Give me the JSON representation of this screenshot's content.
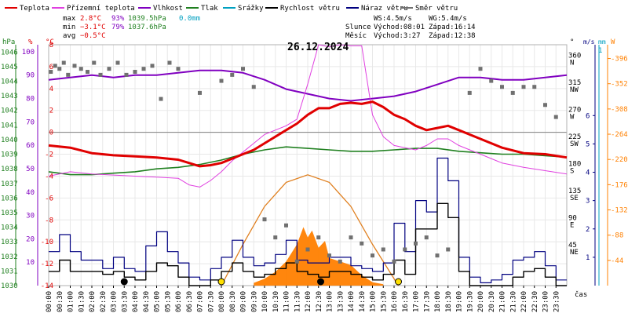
{
  "chart_data": {
    "type": "line",
    "title": "26.12.2024",
    "legend": [
      {
        "label": "Teplota",
        "color": "#e00000"
      },
      {
        "label": "Přízemní teplota",
        "color": "#e040e0"
      },
      {
        "label": "Vlhkost",
        "color": "#8000c0"
      },
      {
        "label": "Tlak",
        "color": "#208020"
      },
      {
        "label": "Srážky",
        "color": "#00a0c0"
      },
      {
        "label": "Rychlost větru",
        "color": "#000000"
      },
      {
        "label": "Náraz větru",
        "color": "#000080"
      },
      {
        "label": "Směr větru",
        "color": "#707070"
      }
    ],
    "stats": {
      "max": {
        "label": "max",
        "temp": "2.8°C",
        "hum": "93%",
        "press": "1039.5hPa",
        "rain": "0.0mm"
      },
      "min": {
        "label": "min",
        "temp": "−3.1°C",
        "hum": "79%",
        "press": "1037.6hPa"
      },
      "avg": {
        "label": "avg",
        "temp": "−0.5°C"
      }
    },
    "ws": "WS:4.5m/s",
    "wg": "WG:5.4m/s",
    "sun": {
      "label": "Slunce",
      "rise": "Východ:08:01",
      "set": "Západ:16:14"
    },
    "moon": {
      "label": "Měsíc",
      "rise": "Východ:3:27",
      "set": "Západ:12:38"
    },
    "x_ticks": [
      "00:00",
      "00:30",
      "01:00",
      "01:30",
      "02:00",
      "02:30",
      "03:00",
      "03:30",
      "04:00",
      "04:30",
      "05:00",
      "05:30",
      "06:00",
      "06:30",
      "07:00",
      "07:30",
      "08:00",
      "08:30",
      "09:00",
      "09:30",
      "10:00",
      "10:30",
      "11:00",
      "11:30",
      "12:00",
      "12:30",
      "13:00",
      "13:30",
      "14:00",
      "14:30",
      "15:00",
      "15:30",
      "16:00",
      "16:30",
      "17:00",
      "17:30",
      "18:00",
      "18:30",
      "19:00",
      "19:30",
      "20:00",
      "20:30",
      "21:00",
      "21:30",
      "22:00",
      "22:30",
      "23:00",
      "23:30"
    ],
    "x_axis_label": "čas",
    "axes": {
      "hpa": {
        "unit": "hPa",
        "ticks": [
          "1046",
          "1045",
          "1044",
          "1043",
          "1042",
          "1041",
          "1040",
          "1039",
          "1038",
          "1037",
          "1036",
          "1035",
          "1034",
          "1033",
          "1032",
          "1031",
          "1030"
        ],
        "range": [
          1030,
          1046.5
        ]
      },
      "pct": {
        "unit": "%",
        "ticks": [
          "100",
          "90",
          "80",
          "70",
          "60",
          "50",
          "40",
          "30",
          "20",
          "10"
        ],
        "range": [
          0,
          103
        ]
      },
      "temp": {
        "unit": "°C",
        "ticks": [
          "8",
          "6",
          "4",
          "2",
          "0",
          "-2",
          "-4",
          "-6",
          "-8",
          "-10",
          "-12",
          "-14"
        ],
        "range": [
          -14,
          8
        ]
      },
      "dir": {
        "unit": "°",
        "labels": [
          {
            "deg": "360",
            "name": "N"
          },
          {
            "deg": "315",
            "name": "NW"
          },
          {
            "deg": "270",
            "name": "W"
          },
          {
            "deg": "225",
            "name": "SW"
          },
          {
            "deg": "180",
            "name": "S"
          },
          {
            "deg": "135",
            "name": "SE"
          },
          {
            "deg": "90",
            "name": "E"
          },
          {
            "deg": "45",
            "name": "NE"
          }
        ],
        "range": [
          0,
          360
        ]
      },
      "wind": {
        "unit": "m/s",
        "ticks": [
          "6",
          "5",
          "4",
          "3",
          "2",
          "1"
        ],
        "range": [
          0,
          6
        ]
      },
      "rain": {
        "unit": "mm",
        "ticks": [
          "1"
        ]
      },
      "solar": {
        "unit": "W",
        "ticks": [
          "396",
          "352",
          "308",
          "264",
          "220",
          "176",
          "132",
          "88",
          "44"
        ],
        "range": [
          0,
          400
        ]
      }
    },
    "series": [
      {
        "name": "Teplota",
        "color": "#e00000",
        "axis": "temp",
        "x": [
          0,
          1,
          2,
          3,
          4,
          5,
          6,
          6.5,
          7,
          7.5,
          8,
          8.5,
          9,
          9.5,
          10,
          10.5,
          11,
          11.5,
          12,
          12.5,
          13,
          13.5,
          14,
          14.5,
          15,
          15.5,
          16,
          16.5,
          17,
          17.5,
          18,
          18.5,
          19,
          20,
          21,
          22,
          23,
          24
        ],
        "y": [
          -1.2,
          -1.4,
          -1.9,
          -2.1,
          -2.2,
          -2.3,
          -2.5,
          -2.8,
          -3.1,
          -3.0,
          -2.8,
          -2.4,
          -2.0,
          -1.6,
          -1.0,
          -0.4,
          0.2,
          0.8,
          1.6,
          2.2,
          2.2,
          2.6,
          2.7,
          2.6,
          2.8,
          2.3,
          1.6,
          1.2,
          0.6,
          0.2,
          0.4,
          0.6,
          0.2,
          -0.6,
          -1.4,
          -1.9,
          -2.0,
          -2.3
        ]
      },
      {
        "name": "Přízemní teplota",
        "color": "#e040e0",
        "axis": "temp",
        "x": [
          0,
          1,
          2,
          3,
          4,
          5,
          6,
          6.5,
          7,
          7.5,
          8,
          8.5,
          9,
          9.5,
          10,
          10.5,
          11,
          11.5,
          12,
          12.5,
          13,
          13.5,
          14,
          14.5,
          15,
          15.5,
          16,
          16.5,
          17,
          17.5,
          18,
          18.5,
          19,
          20,
          21,
          22,
          23,
          24
        ],
        "y": [
          -4.0,
          -3.6,
          -3.8,
          -3.9,
          -4.0,
          -4.1,
          -4.2,
          -4.8,
          -5.0,
          -4.4,
          -3.6,
          -2.6,
          -1.8,
          -1.0,
          -0.2,
          0.2,
          0.6,
          1.2,
          4.4,
          8.0,
          7.8,
          8.0,
          7.9,
          7.9,
          1.6,
          -0.4,
          -1.2,
          -1.4,
          -1.6,
          -1.2,
          -0.6,
          -0.6,
          -1.2,
          -2.0,
          -2.8,
          -3.2,
          -3.5,
          -3.8
        ]
      },
      {
        "name": "Vlhkost",
        "color": "#8000c0",
        "axis": "pct",
        "x": [
          0,
          1,
          2,
          3,
          4,
          5,
          6,
          7,
          8,
          9,
          10,
          11,
          12,
          13,
          14,
          15,
          16,
          17,
          18,
          19,
          20,
          21,
          22,
          23,
          24
        ],
        "y": [
          88,
          89,
          90,
          89,
          90,
          90,
          91,
          92,
          92,
          91,
          88,
          84,
          82,
          80,
          79,
          80,
          81,
          83,
          86,
          89,
          89,
          88,
          88,
          89,
          90
        ]
      },
      {
        "name": "Tlak",
        "color": "#208020",
        "axis": "hpa",
        "x": [
          0,
          1,
          2,
          3,
          4,
          5,
          6,
          7,
          8,
          9,
          10,
          11,
          12,
          13,
          14,
          15,
          16,
          17,
          18,
          19,
          20,
          21,
          22,
          23,
          24
        ],
        "y": [
          1037.8,
          1037.6,
          1037.6,
          1037.7,
          1037.8,
          1038.0,
          1038.1,
          1038.3,
          1038.6,
          1039.0,
          1039.3,
          1039.5,
          1039.4,
          1039.3,
          1039.2,
          1039.2,
          1039.3,
          1039.4,
          1039.4,
          1039.2,
          1039.1,
          1039.0,
          1039.0,
          1038.9,
          1038.8
        ]
      },
      {
        "name": "Rychlost větru",
        "color": "#000000",
        "axis": "wind",
        "x": [
          0,
          0.5,
          1,
          1.5,
          2,
          2.5,
          3,
          3.5,
          4,
          4.5,
          5,
          5.5,
          6,
          6.5,
          7,
          7.5,
          8,
          8.5,
          9,
          9.5,
          10,
          10.5,
          11,
          11.5,
          12,
          12.5,
          13,
          13.5,
          14,
          14.5,
          15,
          15.5,
          16,
          16.5,
          17,
          17.5,
          18,
          18.5,
          19,
          19.5,
          20,
          20.5,
          21,
          21.5,
          22,
          22.5,
          23,
          23.5,
          24
        ],
        "y": [
          0.5,
          0.9,
          0.5,
          0.5,
          0.5,
          0.4,
          0.5,
          0.3,
          0.2,
          0.5,
          0.8,
          0.7,
          0.3,
          0,
          0,
          0.2,
          0.5,
          0.8,
          0.5,
          0.3,
          0.4,
          0.6,
          0.8,
          0.5,
          0.4,
          0.3,
          0.5,
          0.5,
          0.4,
          0.3,
          0.2,
          0.4,
          0.9,
          0.4,
          2.0,
          2.0,
          2.9,
          2.4,
          0.5,
          0,
          0,
          0,
          0,
          0.3,
          0.5,
          0.6,
          0.3,
          0,
          0
        ]
      },
      {
        "name": "Náraz větru",
        "color": "#000080",
        "axis": "wind",
        "x": [
          0,
          0.5,
          1,
          1.5,
          2,
          2.5,
          3,
          3.5,
          4,
          4.5,
          5,
          5.5,
          6,
          6.5,
          7,
          7.5,
          8,
          8.5,
          9,
          9.5,
          10,
          10.5,
          11,
          11.5,
          12,
          12.5,
          13,
          13.5,
          14,
          14.5,
          15,
          15.5,
          16,
          16.5,
          17,
          17.5,
          18,
          18.5,
          19,
          19.5,
          20,
          20.5,
          21,
          21.5,
          22,
          22.5,
          23,
          23.5,
          24
        ],
        "y": [
          1.2,
          1.8,
          1.2,
          0.9,
          0.9,
          0.6,
          1.0,
          0.6,
          0.5,
          1.4,
          1.9,
          1.2,
          0.8,
          0.3,
          0.2,
          0.6,
          1.0,
          1.6,
          1.0,
          0.7,
          0.8,
          1.1,
          1.6,
          0.9,
          0.8,
          0.8,
          1.0,
          1.0,
          0.7,
          0.6,
          0.5,
          0.8,
          2.2,
          1.2,
          3.0,
          2.6,
          4.5,
          3.7,
          1.0,
          0.3,
          0.1,
          0.2,
          0.4,
          0.9,
          1.0,
          1.2,
          0.7,
          0.2,
          0.2
        ]
      },
      {
        "name": "Směr větru",
        "color": "#707070",
        "axis": "dir",
        "x": [
          0.1,
          0.3,
          0.5,
          0.7,
          0.9,
          1.2,
          1.5,
          1.8,
          2.1,
          2.4,
          2.8,
          3.2,
          3.6,
          4.0,
          4.4,
          4.8,
          5.2,
          5.6,
          6.0,
          7.0,
          8.0,
          8.5,
          9.0,
          9.5,
          10.0,
          10.5,
          11.0,
          11.5,
          12.0,
          12.5,
          13.0,
          13.5,
          14.0,
          14.5,
          15.0,
          15.5,
          16.0,
          16.5,
          17.0,
          17.5,
          18.0,
          18.5,
          19.5,
          20.0,
          20.5,
          21.0,
          21.5,
          22.0,
          22.5,
          23.0,
          23.5
        ],
        "y": [
          335,
          345,
          340,
          350,
          330,
          345,
          340,
          335,
          350,
          330,
          340,
          350,
          330,
          335,
          340,
          345,
          290,
          350,
          340,
          300,
          320,
          330,
          340,
          310,
          90,
          60,
          80,
          20,
          40,
          60,
          30,
          20,
          60,
          50,
          30,
          40,
          20,
          40,
          50,
          60,
          30,
          40,
          300,
          340,
          320,
          310,
          300,
          310,
          310,
          280,
          260
        ]
      }
    ],
    "radiation": {
      "color": "#ff8000",
      "axis": "solar",
      "x": [
        9.5,
        10,
        10.5,
        11,
        11.5,
        11.8,
        12,
        12.2,
        12.5,
        12.8,
        13,
        13.5,
        14,
        14.5,
        15,
        15.5
      ],
      "y": [
        8,
        20,
        40,
        70,
        120,
        170,
        140,
        160,
        110,
        130,
        80,
        70,
        60,
        30,
        10,
        4
      ]
    },
    "clear_sky": {
      "color": "#e08020",
      "axis": "solar",
      "x": [
        8.0,
        9,
        10,
        11,
        12,
        13,
        14,
        15,
        16.2
      ],
      "y": [
        0,
        120,
        230,
        300,
        322,
        300,
        230,
        120,
        0
      ]
    },
    "markers": [
      {
        "x": 3.5,
        "kind": "moonrise",
        "color": "#000000"
      },
      {
        "x": 8.0,
        "kind": "sunrise",
        "color": "#ffe000"
      },
      {
        "x": 12.6,
        "kind": "moonset",
        "color": "#000000"
      },
      {
        "x": 16.2,
        "kind": "sunset",
        "color": "#ffe000"
      }
    ]
  }
}
